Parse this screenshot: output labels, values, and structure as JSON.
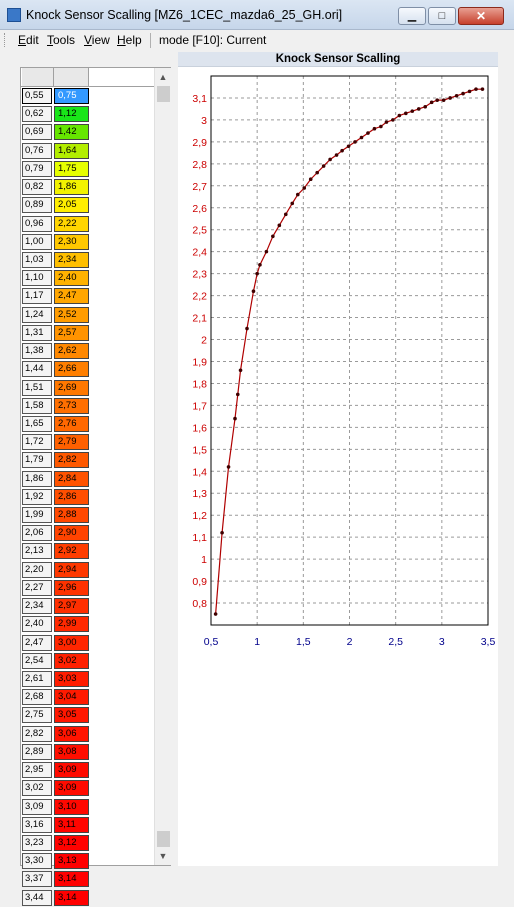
{
  "window": {
    "title": "Knock Sensor Scalling [MZ6_1CEC_mazda6_25_GH.ori]",
    "buttons": {
      "minimize": "▁",
      "maximize": "□",
      "close": "✕"
    }
  },
  "menu": {
    "items": [
      {
        "label": "Edit",
        "accel": "E",
        "rest": "dit"
      },
      {
        "label": "Tools",
        "accel": "T",
        "rest": "ools"
      },
      {
        "label": "View",
        "accel": "V",
        "rest": "iew"
      },
      {
        "label": "Help",
        "accel": "H",
        "rest": "elp"
      }
    ],
    "mode_label": "mode [F10]: Current"
  },
  "table": {
    "selected_row": 0,
    "rows": [
      {
        "x": "0,55",
        "y": "0,75",
        "color": "#3399ff"
      },
      {
        "x": "0,62",
        "y": "1,12",
        "color": "#19e619"
      },
      {
        "x": "0,69",
        "y": "1,42",
        "color": "#66e600"
      },
      {
        "x": "0,76",
        "y": "1,64",
        "color": "#b3ee00"
      },
      {
        "x": "0,79",
        "y": "1,75",
        "color": "#e6ff00"
      },
      {
        "x": "0,82",
        "y": "1,86",
        "color": "#f2f200"
      },
      {
        "x": "0,89",
        "y": "2,05",
        "color": "#ffee00"
      },
      {
        "x": "0,96",
        "y": "2,22",
        "color": "#ffd500"
      },
      {
        "x": "1,00",
        "y": "2,30",
        "color": "#ffc800"
      },
      {
        "x": "1,03",
        "y": "2,34",
        "color": "#ffbf00"
      },
      {
        "x": "1,10",
        "y": "2,40",
        "color": "#ffb200"
      },
      {
        "x": "1,17",
        "y": "2,47",
        "color": "#ffa600"
      },
      {
        "x": "1,24",
        "y": "2,52",
        "color": "#ff9c00"
      },
      {
        "x": "1,31",
        "y": "2,57",
        "color": "#ff9300"
      },
      {
        "x": "1,38",
        "y": "2,62",
        "color": "#ff8800"
      },
      {
        "x": "1,44",
        "y": "2,66",
        "color": "#ff7f00"
      },
      {
        "x": "1,51",
        "y": "2,69",
        "color": "#ff7800"
      },
      {
        "x": "1,58",
        "y": "2,73",
        "color": "#ff6f00"
      },
      {
        "x": "1,65",
        "y": "2,76",
        "color": "#ff6800"
      },
      {
        "x": "1,72",
        "y": "2,79",
        "color": "#ff6000"
      },
      {
        "x": "1,79",
        "y": "2,82",
        "color": "#ff5900"
      },
      {
        "x": "1,86",
        "y": "2,84",
        "color": "#ff5300"
      },
      {
        "x": "1,92",
        "y": "2,86",
        "color": "#ff4e00"
      },
      {
        "x": "1,99",
        "y": "2,88",
        "color": "#ff4800"
      },
      {
        "x": "2,06",
        "y": "2,90",
        "color": "#ff4300"
      },
      {
        "x": "2,13",
        "y": "2,92",
        "color": "#ff3d00"
      },
      {
        "x": "2,20",
        "y": "2,94",
        "color": "#ff3800"
      },
      {
        "x": "2,27",
        "y": "2,96",
        "color": "#ff3200"
      },
      {
        "x": "2,34",
        "y": "2,97",
        "color": "#ff2f00"
      },
      {
        "x": "2,40",
        "y": "2,99",
        "color": "#ff2900"
      },
      {
        "x": "2,47",
        "y": "3,00",
        "color": "#ff2600"
      },
      {
        "x": "2,54",
        "y": "3,02",
        "color": "#ff2000"
      },
      {
        "x": "2,61",
        "y": "3,03",
        "color": "#ff1d00"
      },
      {
        "x": "2,68",
        "y": "3,04",
        "color": "#ff1a00"
      },
      {
        "x": "2,75",
        "y": "3,05",
        "color": "#ff1700"
      },
      {
        "x": "2,82",
        "y": "3,06",
        "color": "#ff1400"
      },
      {
        "x": "2,89",
        "y": "3,08",
        "color": "#ff0e00"
      },
      {
        "x": "2,95",
        "y": "3,09",
        "color": "#ff0b00"
      },
      {
        "x": "3,02",
        "y": "3,09",
        "color": "#ff0b00"
      },
      {
        "x": "3,09",
        "y": "3,10",
        "color": "#ff0800"
      },
      {
        "x": "3,16",
        "y": "3,11",
        "color": "#ff0500"
      },
      {
        "x": "3,23",
        "y": "3,12",
        "color": "#ff0200"
      },
      {
        "x": "3,30",
        "y": "3,13",
        "color": "#ff0000"
      },
      {
        "x": "3,37",
        "y": "3,14",
        "color": "#ff0000"
      },
      {
        "x": "3,44",
        "y": "3,14",
        "color": "#ff0000"
      }
    ]
  },
  "chart_data": {
    "type": "line",
    "title": "Knock Sensor Scalling",
    "xlabel": "",
    "ylabel": "",
    "xlim": [
      0.5,
      3.5
    ],
    "ylim": [
      0.7,
      3.2
    ],
    "xticks": [
      0.5,
      1,
      1.5,
      2,
      2.5,
      3,
      3.5
    ],
    "xtick_labels": [
      "0,5",
      "1",
      "1,5",
      "2",
      "2,5",
      "3",
      "3,5"
    ],
    "yticks": [
      0.8,
      0.9,
      1.0,
      1.1,
      1.2,
      1.3,
      1.4,
      1.5,
      1.6,
      1.7,
      1.8,
      1.9,
      2.0,
      2.1,
      2.2,
      2.3,
      2.4,
      2.5,
      2.6,
      2.7,
      2.8,
      2.9,
      3.0,
      3.1
    ],
    "ytick_labels": [
      "0,8",
      "0,9",
      "1",
      "1,1",
      "1,2",
      "1,3",
      "1,4",
      "1,5",
      "1,6",
      "1,7",
      "1,8",
      "1,9",
      "2",
      "2,1",
      "2,2",
      "2,3",
      "2,4",
      "2,5",
      "2,6",
      "2,7",
      "2,8",
      "2,9",
      "3",
      "3,1"
    ],
    "grid": true,
    "line_color": "#b00000",
    "axis_label_color_x": "#00008b",
    "axis_label_color_y": "#cc0000",
    "series": [
      {
        "x": [
          0.55,
          0.62,
          0.69,
          0.76,
          0.79,
          0.82,
          0.89,
          0.96,
          1.0,
          1.03,
          1.1,
          1.17,
          1.24,
          1.31,
          1.38,
          1.44,
          1.51,
          1.58,
          1.65,
          1.72,
          1.79,
          1.86,
          1.92,
          1.99,
          2.06,
          2.13,
          2.2,
          2.27,
          2.34,
          2.4,
          2.47,
          2.54,
          2.61,
          2.68,
          2.75,
          2.82,
          2.89,
          2.95,
          3.02,
          3.09,
          3.16,
          3.23,
          3.3,
          3.37,
          3.44
        ],
        "y": [
          0.75,
          1.12,
          1.42,
          1.64,
          1.75,
          1.86,
          2.05,
          2.22,
          2.3,
          2.34,
          2.4,
          2.47,
          2.52,
          2.57,
          2.62,
          2.66,
          2.69,
          2.73,
          2.76,
          2.79,
          2.82,
          2.84,
          2.86,
          2.88,
          2.9,
          2.92,
          2.94,
          2.96,
          2.97,
          2.99,
          3.0,
          3.02,
          3.03,
          3.04,
          3.05,
          3.06,
          3.08,
          3.09,
          3.09,
          3.1,
          3.11,
          3.12,
          3.13,
          3.14,
          3.14
        ]
      }
    ]
  }
}
